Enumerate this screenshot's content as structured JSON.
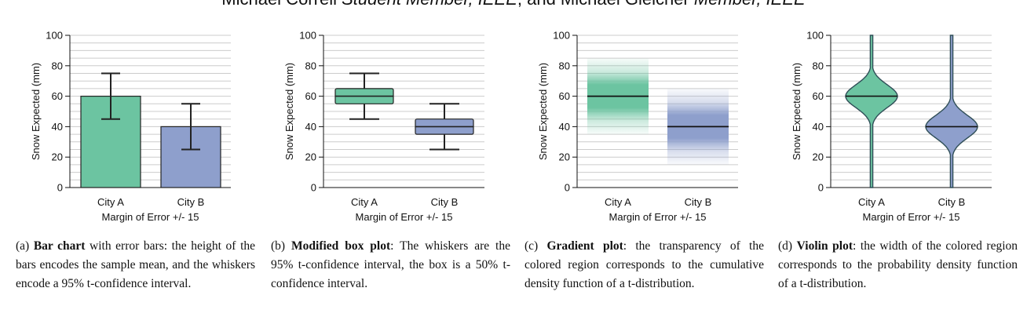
{
  "header": {
    "authors_prefix": "Michael Correll ",
    "member1": "Student Member, IEEE",
    "middle": ", and Michael Gleicher ",
    "member2": "Member, IEEE"
  },
  "colors": {
    "city_a": "#6cc4a1",
    "city_b": "#8e9fcc",
    "grid": "#cccccc",
    "dark": "#222222",
    "violin_edge": "#3d6b5c"
  },
  "chart_data": [
    {
      "type": "bar",
      "categories": [
        "City A",
        "City B"
      ],
      "values": [
        60,
        40
      ],
      "error_low": [
        45,
        25
      ],
      "error_high": [
        75,
        55
      ],
      "ylabel": "Snow Expected (mm)",
      "xlabel": "Margin of Error +/- 15",
      "ylim": [
        0,
        100
      ],
      "yticks": [
        0,
        20,
        40,
        60,
        80,
        100
      ],
      "grid": true
    },
    {
      "type": "box",
      "categories": [
        "City A",
        "City B"
      ],
      "median": [
        60,
        40
      ],
      "box_low": [
        55,
        35
      ],
      "box_high": [
        65,
        45
      ],
      "whisker_low": [
        45,
        25
      ],
      "whisker_high": [
        75,
        55
      ],
      "ylabel": "Snow Expected (mm)",
      "xlabel": "Margin of Error +/- 15",
      "ylim": [
        0,
        100
      ],
      "yticks": [
        0,
        20,
        40,
        60,
        80,
        100
      ],
      "grid": true
    },
    {
      "type": "gradient",
      "categories": [
        "City A",
        "City B"
      ],
      "mean": [
        60,
        40
      ],
      "extent_low": [
        35,
        15
      ],
      "extent_high": [
        85,
        65
      ],
      "ylabel": "Snow Expected (mm)",
      "xlabel": "Margin of Error +/- 15",
      "ylim": [
        0,
        100
      ],
      "yticks": [
        0,
        20,
        40,
        60,
        80,
        100
      ],
      "grid": true
    },
    {
      "type": "violin",
      "categories": [
        "City A",
        "City B"
      ],
      "mean": [
        60,
        40
      ],
      "ylabel": "Snow Expected (mm)",
      "xlabel": "Margin of Error +/- 15",
      "ylim": [
        0,
        100
      ],
      "yticks": [
        0,
        20,
        40,
        60,
        80,
        100
      ],
      "grid": true
    }
  ],
  "captions": [
    {
      "prefix": "(a) ",
      "bold": "Bar chart",
      "rest": " with error bars: the height of the bars encodes the sample mean, and the whiskers encode a 95% t-confidence interval."
    },
    {
      "prefix": "(b) ",
      "bold": "Modified box plot",
      "rest": ": The whiskers are the 95% t-confidence interval, the box is a 50% t-confidence interval."
    },
    {
      "prefix": "(c) ",
      "bold": "Gradient plot",
      "rest": ": the transparency of the colored region corresponds to the cumulative density function of a t-distribution."
    },
    {
      "prefix": "(d) ",
      "bold": "Violin plot",
      "rest": ": the width of the colored region corresponds to the probability density function of a t-distribution."
    }
  ]
}
